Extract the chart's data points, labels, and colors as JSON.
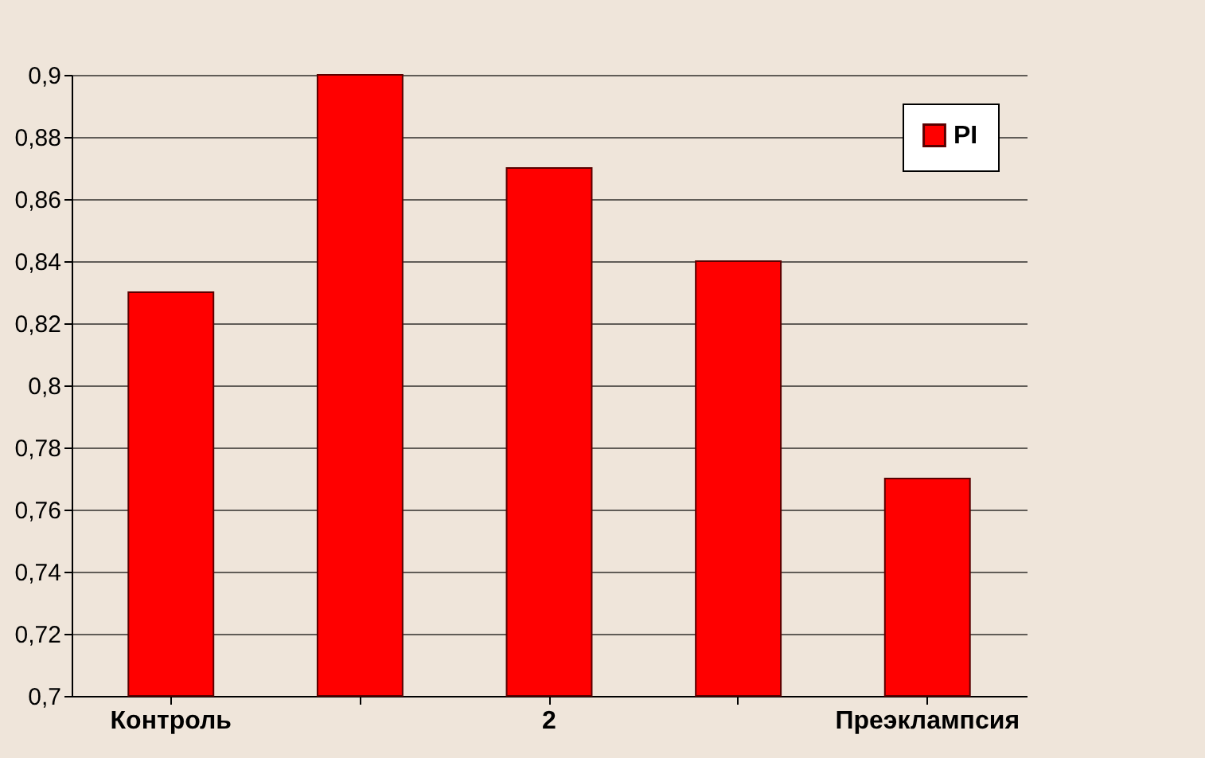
{
  "chart_data": {
    "type": "bar",
    "categories": [
      "Контроль",
      null,
      "2",
      null,
      "Преэклампсия"
    ],
    "series": [
      {
        "name": "PI",
        "color": "#ff0000",
        "values": [
          0.83,
          0.9,
          0.87,
          0.84,
          0.77
        ]
      }
    ],
    "ylim": [
      0.7,
      0.9
    ],
    "yticks": [
      {
        "value": 0.7,
        "label": "0,7"
      },
      {
        "value": 0.72,
        "label": "0,72"
      },
      {
        "value": 0.74,
        "label": "0,74"
      },
      {
        "value": 0.76,
        "label": "0,76"
      },
      {
        "value": 0.78,
        "label": "0,78"
      },
      {
        "value": 0.8,
        "label": "0,8"
      },
      {
        "value": 0.82,
        "label": "0,82"
      },
      {
        "value": 0.84,
        "label": "0,84"
      },
      {
        "value": 0.86,
        "label": "0,86"
      },
      {
        "value": 0.88,
        "label": "0,88"
      },
      {
        "value": 0.9,
        "label": "0,9"
      }
    ],
    "grid": "y",
    "legend": "top right"
  }
}
